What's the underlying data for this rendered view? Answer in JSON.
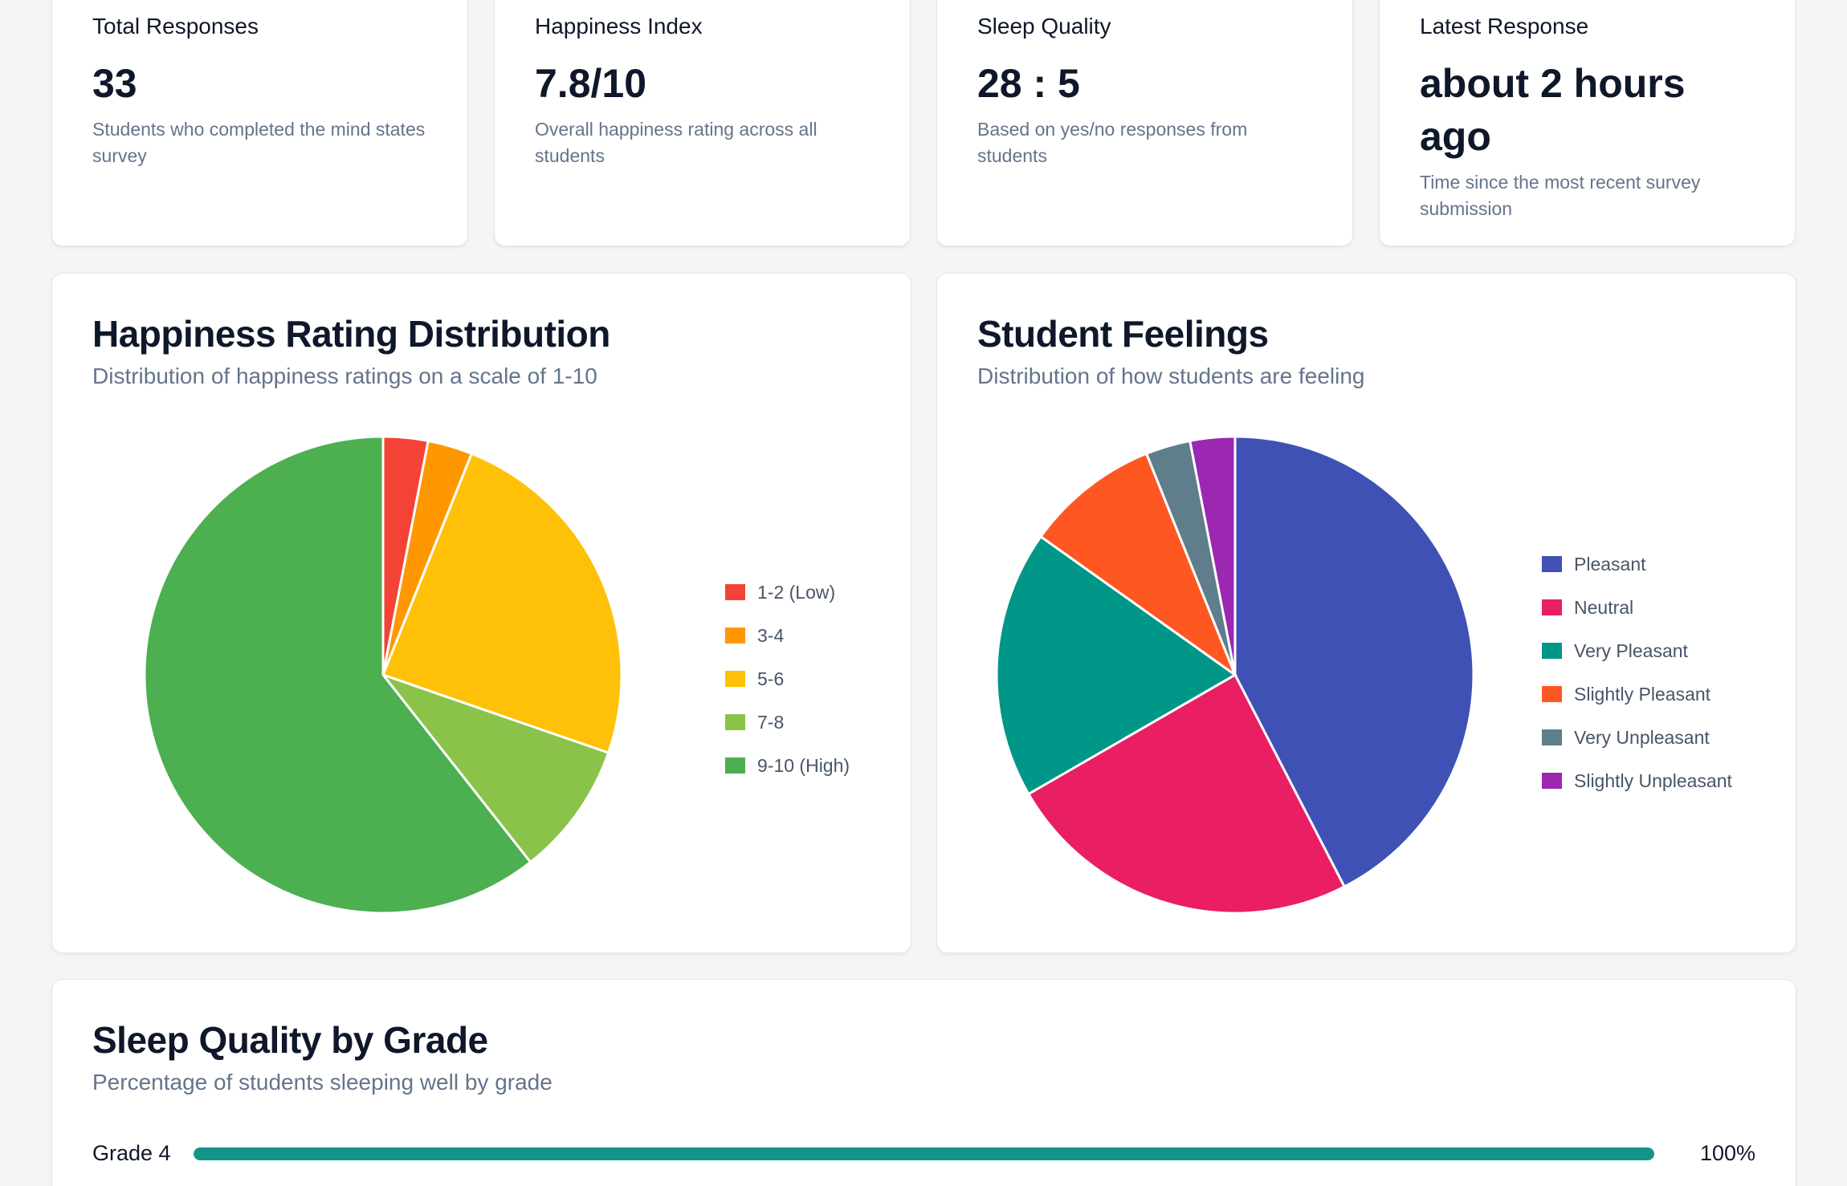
{
  "stats": [
    {
      "label": "Total Responses",
      "value": "33",
      "description": "Students who completed the mind states survey"
    },
    {
      "label": "Happiness Index",
      "value": "7.8/10",
      "description": "Overall happiness rating across all students"
    },
    {
      "label": "Sleep Quality",
      "value": "28 : 5",
      "description": "Based on yes/no responses from students"
    },
    {
      "label": "Latest Response",
      "value": "about 2 hours ago",
      "description": "Time since the most recent survey submission"
    }
  ],
  "happiness_card": {
    "title": "Happiness Rating Distribution",
    "subtitle": "Distribution of happiness ratings on a scale of 1-10"
  },
  "feelings_card": {
    "title": "Student Feelings",
    "subtitle": "Distribution of how students are feeling"
  },
  "sleep_card": {
    "title": "Sleep Quality by Grade",
    "subtitle": "Percentage of students sleeping well by grade",
    "grades": [
      {
        "label": "Grade 4",
        "percent": 100,
        "percent_label": "100%"
      }
    ],
    "bar_color": "#139488"
  },
  "chart_data": [
    {
      "type": "pie",
      "legend_position": "right",
      "categories": [
        "1-2 (Low)",
        "3-4",
        "5-6",
        "7-8",
        "9-10 (High)"
      ],
      "values": [
        1,
        1,
        8,
        3,
        20
      ],
      "colors": [
        "#f44336",
        "#ff9800",
        "#ffc107",
        "#8bc34a",
        "#4caf50"
      ]
    },
    {
      "type": "pie",
      "legend_position": "right",
      "categories": [
        "Pleasant",
        "Neutral",
        "Very Pleasant",
        "Slightly Pleasant",
        "Very Unpleasant",
        "Slightly Unpleasant"
      ],
      "values": [
        14,
        8,
        6,
        3,
        1,
        1
      ],
      "colors": [
        "#3f51b5",
        "#e91e63",
        "#009688",
        "#ff5722",
        "#607d8b",
        "#9c27b0"
      ]
    }
  ]
}
